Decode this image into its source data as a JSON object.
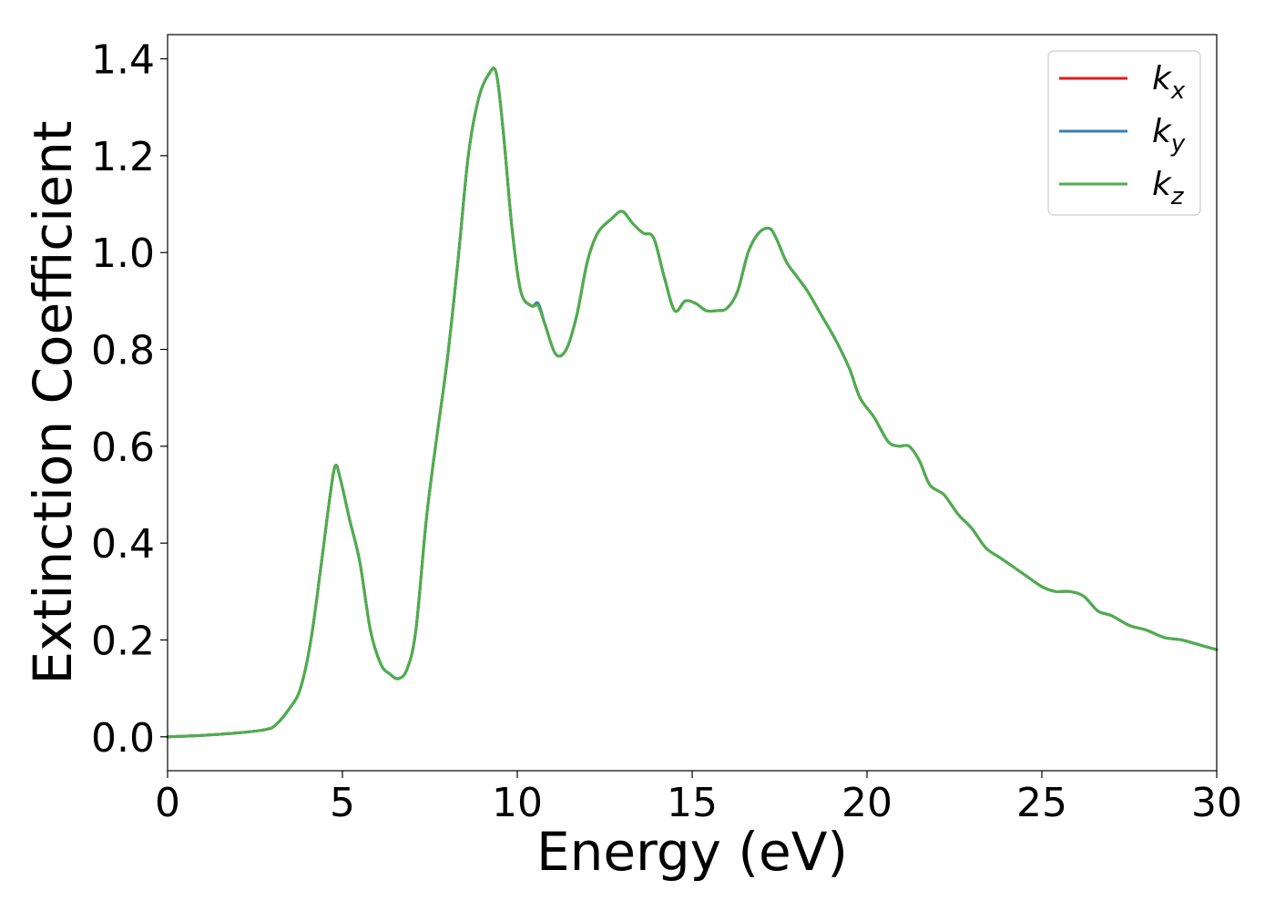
{
  "chart_data": {
    "type": "line",
    "xlabel": "Energy (eV)",
    "ylabel": "Extinction Coefficient",
    "xlim": [
      0,
      30
    ],
    "ylim": [
      -0.07,
      1.45
    ],
    "xticks": [
      0,
      5,
      10,
      15,
      20,
      25,
      30
    ],
    "xtick_labels": [
      "0",
      "5",
      "10",
      "15",
      "20",
      "25",
      "30"
    ],
    "yticks": [
      0.0,
      0.2,
      0.4,
      0.6,
      0.8,
      1.0,
      1.2,
      1.4
    ],
    "ytick_labels": [
      "0.0",
      "0.2",
      "0.4",
      "0.6",
      "0.8",
      "1.0",
      "1.2",
      "1.4"
    ],
    "grid": false,
    "legend_position": "top-right",
    "series": [
      {
        "name": "k_x",
        "label_base": "k",
        "label_sub": "x",
        "color": "#e41a1c",
        "x": [
          0,
          1,
          2,
          2.8,
          3.1,
          3.5,
          3.8,
          4.1,
          4.4,
          4.65,
          4.8,
          4.95,
          5.2,
          5.5,
          5.8,
          6.1,
          6.35,
          6.6,
          6.85,
          7.1,
          7.4,
          7.7,
          8.0,
          8.3,
          8.6,
          8.9,
          9.2,
          9.4,
          9.6,
          9.85,
          10.1,
          10.4,
          10.6,
          10.8,
          11.1,
          11.4,
          11.7,
          12.0,
          12.3,
          12.7,
          13.0,
          13.3,
          13.6,
          13.9,
          14.2,
          14.5,
          14.8,
          15.1,
          15.4,
          15.7,
          16.0,
          16.3,
          16.6,
          16.9,
          17.2,
          17.4,
          17.7,
          18.0,
          18.3,
          18.7,
          19.1,
          19.5,
          19.8,
          20.2,
          20.6,
          20.9,
          21.2,
          21.5,
          21.8,
          22.2,
          22.6,
          23.0,
          23.4,
          23.8,
          24.2,
          24.6,
          25.0,
          25.4,
          25.8,
          26.2,
          26.6,
          27.0,
          27.5,
          28.0,
          28.5,
          29.0,
          29.5,
          30.0
        ],
        "y": [
          0.0,
          0.003,
          0.008,
          0.015,
          0.025,
          0.06,
          0.1,
          0.2,
          0.36,
          0.5,
          0.56,
          0.53,
          0.45,
          0.36,
          0.22,
          0.15,
          0.13,
          0.12,
          0.14,
          0.22,
          0.45,
          0.62,
          0.78,
          0.98,
          1.2,
          1.32,
          1.37,
          1.37,
          1.25,
          1.05,
          0.92,
          0.89,
          0.89,
          0.85,
          0.79,
          0.8,
          0.87,
          0.98,
          1.04,
          1.07,
          1.085,
          1.06,
          1.04,
          1.03,
          0.95,
          0.88,
          0.9,
          0.895,
          0.88,
          0.88,
          0.885,
          0.92,
          1.0,
          1.04,
          1.05,
          1.03,
          0.98,
          0.95,
          0.92,
          0.87,
          0.82,
          0.76,
          0.7,
          0.66,
          0.61,
          0.6,
          0.6,
          0.57,
          0.52,
          0.5,
          0.46,
          0.43,
          0.39,
          0.37,
          0.35,
          0.33,
          0.31,
          0.3,
          0.3,
          0.29,
          0.26,
          0.25,
          0.23,
          0.22,
          0.205,
          0.2,
          0.19,
          0.18
        ]
      },
      {
        "name": "k_y",
        "label_base": "k",
        "label_sub": "y",
        "color": "#377eb8",
        "x": [
          0,
          1,
          2,
          2.8,
          3.1,
          3.5,
          3.8,
          4.1,
          4.4,
          4.65,
          4.8,
          4.95,
          5.2,
          5.5,
          5.8,
          6.1,
          6.35,
          6.6,
          6.85,
          7.1,
          7.4,
          7.7,
          8.0,
          8.3,
          8.6,
          8.9,
          9.2,
          9.4,
          9.6,
          9.85,
          10.1,
          10.4,
          10.6,
          10.8,
          11.1,
          11.4,
          11.7,
          12.0,
          12.3,
          12.7,
          13.0,
          13.3,
          13.6,
          13.9,
          14.2,
          14.5,
          14.8,
          15.1,
          15.4,
          15.7,
          16.0,
          16.3,
          16.6,
          16.9,
          17.2,
          17.4,
          17.7,
          18.0,
          18.3,
          18.7,
          19.1,
          19.5,
          19.8,
          20.2,
          20.6,
          20.9,
          21.2,
          21.5,
          21.8,
          22.2,
          22.6,
          23.0,
          23.4,
          23.8,
          24.2,
          24.6,
          25.0,
          25.4,
          25.8,
          26.2,
          26.6,
          27.0,
          27.5,
          28.0,
          28.5,
          29.0,
          29.5,
          30.0
        ],
        "y": [
          0.0,
          0.003,
          0.008,
          0.015,
          0.025,
          0.06,
          0.1,
          0.2,
          0.36,
          0.5,
          0.56,
          0.53,
          0.45,
          0.36,
          0.22,
          0.15,
          0.13,
          0.12,
          0.14,
          0.22,
          0.45,
          0.62,
          0.78,
          0.98,
          1.2,
          1.32,
          1.37,
          1.37,
          1.25,
          1.05,
          0.92,
          0.89,
          0.895,
          0.85,
          0.79,
          0.8,
          0.87,
          0.98,
          1.04,
          1.07,
          1.085,
          1.06,
          1.04,
          1.03,
          0.95,
          0.88,
          0.9,
          0.895,
          0.88,
          0.88,
          0.885,
          0.92,
          1.0,
          1.04,
          1.05,
          1.03,
          0.98,
          0.95,
          0.92,
          0.87,
          0.82,
          0.76,
          0.7,
          0.66,
          0.61,
          0.6,
          0.6,
          0.57,
          0.52,
          0.5,
          0.46,
          0.43,
          0.39,
          0.37,
          0.35,
          0.33,
          0.31,
          0.3,
          0.3,
          0.29,
          0.26,
          0.25,
          0.23,
          0.22,
          0.205,
          0.2,
          0.19,
          0.18
        ]
      },
      {
        "name": "k_z",
        "label_base": "k",
        "label_sub": "z",
        "color": "#4daf4a",
        "x": [
          0,
          1,
          2,
          2.8,
          3.1,
          3.5,
          3.8,
          4.1,
          4.4,
          4.65,
          4.8,
          4.95,
          5.2,
          5.5,
          5.8,
          6.1,
          6.35,
          6.6,
          6.85,
          7.1,
          7.4,
          7.7,
          8.0,
          8.3,
          8.6,
          8.9,
          9.2,
          9.4,
          9.6,
          9.85,
          10.1,
          10.4,
          10.6,
          10.8,
          11.1,
          11.4,
          11.7,
          12.0,
          12.3,
          12.7,
          13.0,
          13.3,
          13.6,
          13.9,
          14.2,
          14.5,
          14.8,
          15.1,
          15.4,
          15.7,
          16.0,
          16.3,
          16.6,
          16.9,
          17.2,
          17.4,
          17.7,
          18.0,
          18.3,
          18.7,
          19.1,
          19.5,
          19.8,
          20.2,
          20.6,
          20.9,
          21.2,
          21.5,
          21.8,
          22.2,
          22.6,
          23.0,
          23.4,
          23.8,
          24.2,
          24.6,
          25.0,
          25.4,
          25.8,
          26.2,
          26.6,
          27.0,
          27.5,
          28.0,
          28.5,
          29.0,
          29.5,
          30.0
        ],
        "y": [
          0.0,
          0.003,
          0.008,
          0.015,
          0.025,
          0.06,
          0.1,
          0.2,
          0.36,
          0.5,
          0.56,
          0.53,
          0.45,
          0.36,
          0.22,
          0.15,
          0.13,
          0.12,
          0.14,
          0.22,
          0.45,
          0.62,
          0.78,
          0.98,
          1.2,
          1.32,
          1.37,
          1.37,
          1.25,
          1.05,
          0.92,
          0.89,
          0.89,
          0.85,
          0.79,
          0.8,
          0.87,
          0.98,
          1.04,
          1.07,
          1.085,
          1.06,
          1.04,
          1.03,
          0.95,
          0.88,
          0.9,
          0.895,
          0.88,
          0.88,
          0.885,
          0.92,
          1.0,
          1.04,
          1.05,
          1.03,
          0.98,
          0.95,
          0.92,
          0.87,
          0.82,
          0.76,
          0.7,
          0.66,
          0.61,
          0.6,
          0.6,
          0.57,
          0.52,
          0.5,
          0.46,
          0.43,
          0.39,
          0.37,
          0.35,
          0.33,
          0.31,
          0.3,
          0.3,
          0.29,
          0.26,
          0.25,
          0.23,
          0.22,
          0.205,
          0.2,
          0.19,
          0.18
        ]
      }
    ]
  }
}
